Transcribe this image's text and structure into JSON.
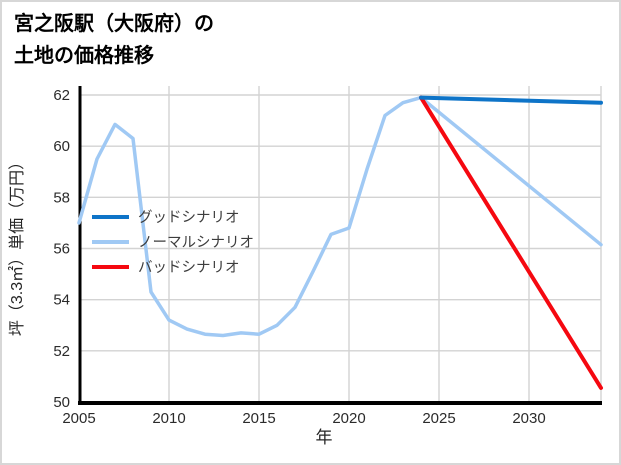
{
  "page": {
    "background": "#ffffff",
    "border_color": "#d7d7d7"
  },
  "title": {
    "line1": "宮之阪駅（大阪府）の",
    "line2": "土地の価格推移"
  },
  "colors": {
    "good": "#0e74c8",
    "normal": "#a0c9f4",
    "bad": "#f50810",
    "grid": "#d3d3d3",
    "axis": "#000000",
    "tick_text": "#2b2b2b",
    "label_text": "#262626",
    "legend_text": "#3d3d3d"
  },
  "chart_data": {
    "type": "line",
    "title": "宮之阪駅（大阪府）の土地の価格推移",
    "xlabel": "年",
    "ylabel": "坪（3.3㎡）単価（万円）",
    "xlim": [
      2005,
      2034
    ],
    "ylim": [
      50,
      62
    ],
    "xticks": [
      2005,
      2010,
      2015,
      2020,
      2025,
      2030
    ],
    "yticks": [
      50,
      52,
      54,
      56,
      58,
      60,
      62
    ],
    "grid": true,
    "legend_position": "upper-left-inside",
    "series": [
      {
        "id": "good-scenario",
        "name": "グッドシナリオ",
        "color": "#0e74c8",
        "width": 4,
        "x": [
          2024,
          2034
        ],
        "y": [
          61.9,
          61.7
        ]
      },
      {
        "id": "normal-scenario",
        "name": "ノーマルシナリオ",
        "color": "#a0c9f4",
        "width": 3.5,
        "x": [
          2005,
          2006,
          2007,
          2008,
          2009,
          2010,
          2011,
          2012,
          2013,
          2014,
          2015,
          2016,
          2017,
          2018,
          2019,
          2020,
          2021,
          2022,
          2023,
          2024,
          2034
        ],
        "y": [
          57.0,
          59.5,
          60.85,
          60.3,
          54.3,
          53.2,
          52.85,
          52.65,
          52.6,
          52.7,
          52.65,
          53.0,
          53.7,
          55.1,
          56.55,
          56.8,
          59.1,
          61.2,
          61.7,
          61.9,
          56.15
        ]
      },
      {
        "id": "bad-scenario",
        "name": "バッドシナリオ",
        "color": "#f50810",
        "width": 4,
        "x": [
          2024,
          2034
        ],
        "y": [
          61.9,
          50.55
        ]
      }
    ]
  }
}
